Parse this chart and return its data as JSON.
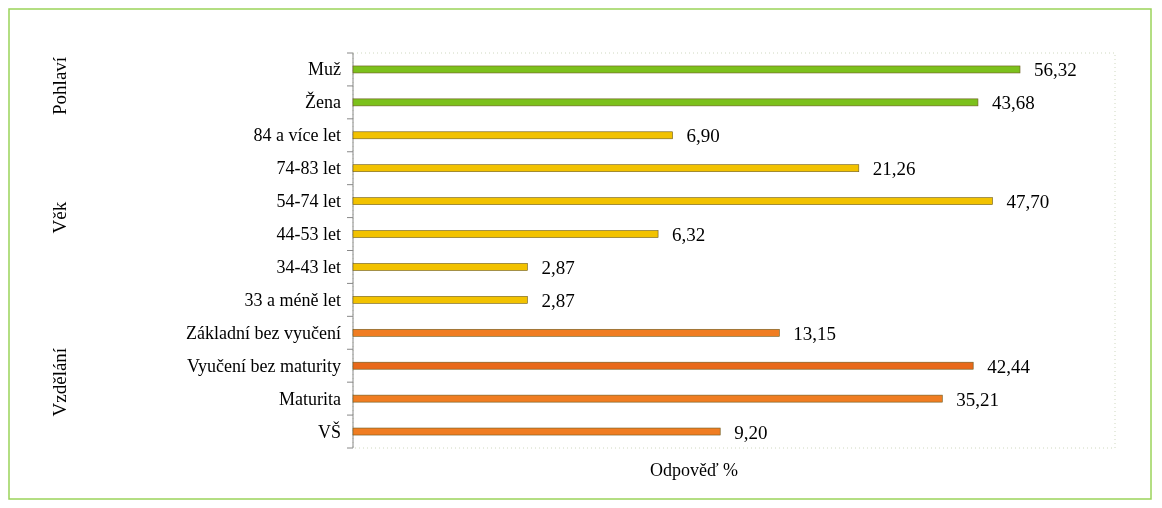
{
  "chart_data": {
    "type": "bar",
    "orientation": "horizontal",
    "xlabel": "Odpověď %",
    "categories": [
      "Muž",
      "Žena",
      "84 a více let",
      "74-83 let",
      "54-74 let",
      "44-53 let",
      "34-43 let",
      "33 a méně let",
      "Základní bez vyučení",
      "Vyučení bez maturity",
      "Maturita",
      "VŠ"
    ],
    "values": [
      56.32,
      43.68,
      6.9,
      21.26,
      47.7,
      6.32,
      2.87,
      2.87,
      13.15,
      42.44,
      35.21,
      9.2
    ],
    "value_labels": [
      "56,32",
      "43,68",
      "6,90",
      "21,26",
      "47,70",
      "6,32",
      "2,87",
      "2,87",
      "13,15",
      "42,44",
      "35,21",
      "9,20"
    ],
    "colors": [
      "#7cc11c",
      "#7cc11c",
      "#f2c200",
      "#f2c200",
      "#f2c200",
      "#f2c200",
      "#f2c200",
      "#f2c200",
      "#f07d22",
      "#e8691a",
      "#f07d22",
      "#f07d22"
    ],
    "log": "x",
    "xlim": [
      1,
      100
    ],
    "tick_labels": "y",
    "annotations": [
      "Pohlaví",
      "Věk",
      "Vzdělání"
    ]
  }
}
